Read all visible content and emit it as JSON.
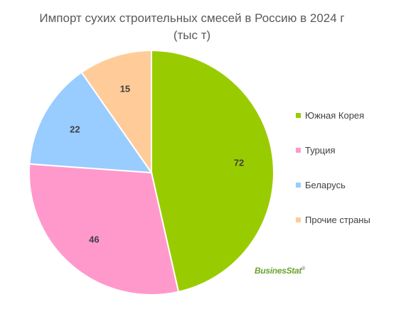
{
  "chart_data": {
    "type": "pie",
    "title": "Импорт сухих строительных смесей в Россию в 2024 г",
    "subtitle": "(тыс т)",
    "categories": [
      "Южная Корея",
      "Турция",
      "Беларусь",
      "Прочие страны"
    ],
    "values": [
      72,
      46,
      22,
      15
    ],
    "value_labels": [
      "72",
      "46",
      "22",
      "15"
    ],
    "colors": [
      "#99cc00",
      "#ff99cc",
      "#99ccff",
      "#ffcc99"
    ],
    "legend_placement": "right"
  },
  "branding": {
    "logo_text": "BusinesStat",
    "logo_mark": "®"
  }
}
